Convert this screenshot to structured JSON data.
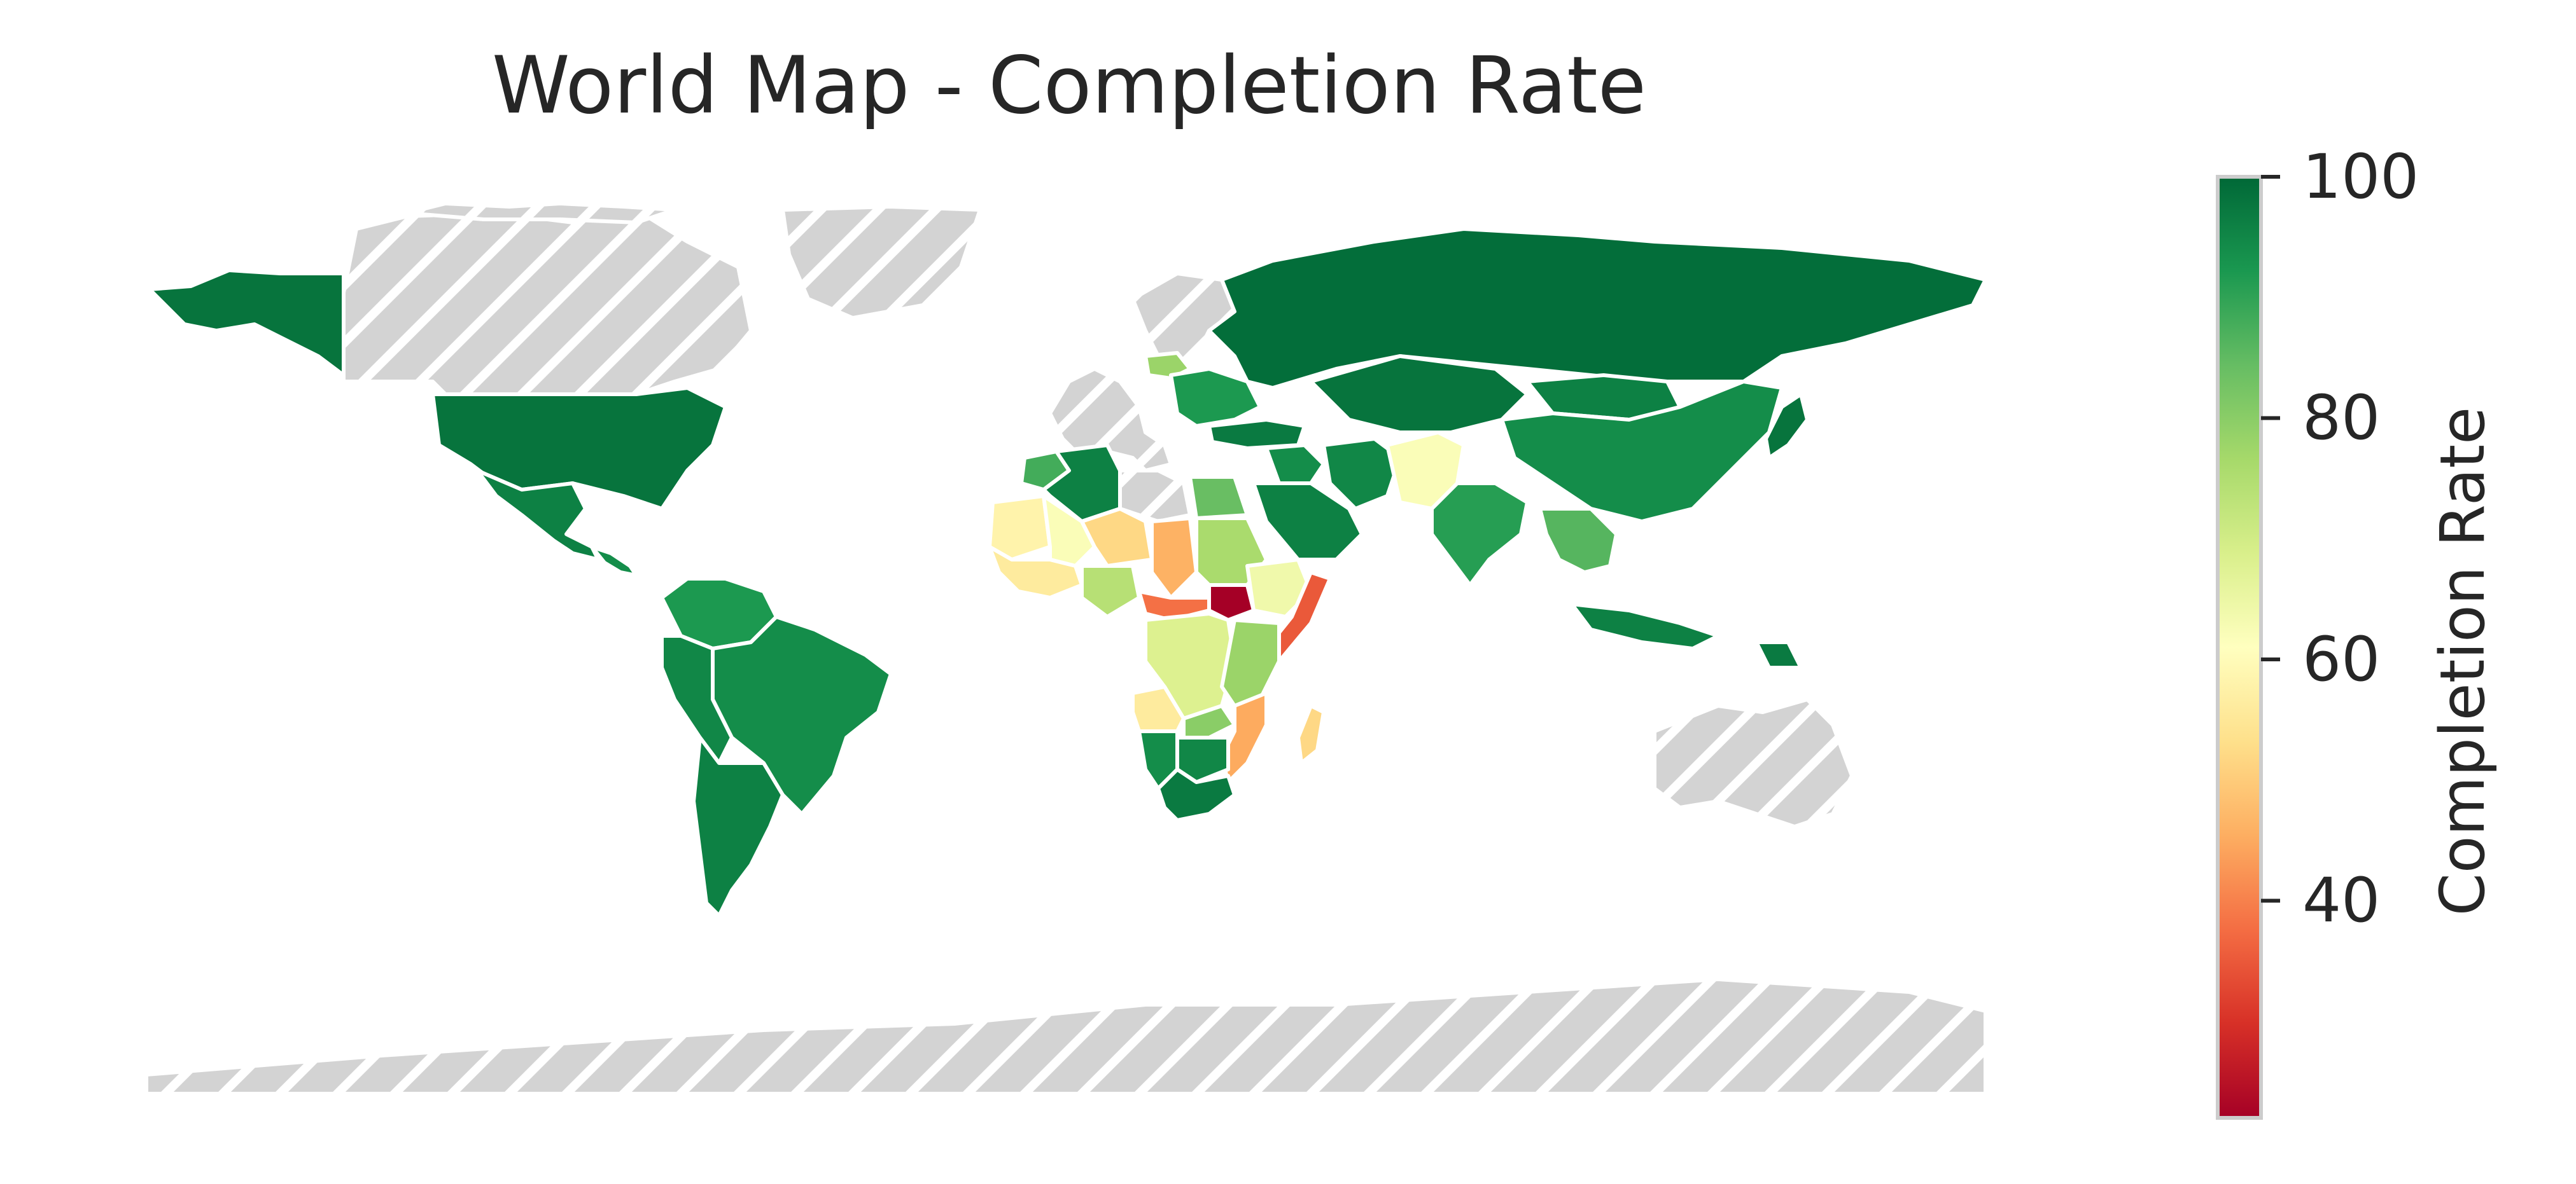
{
  "title": "World Map - Completion Rate",
  "colorbar": {
    "label": "Completion Rate",
    "min": 22,
    "max": 100,
    "ticks": [
      "40",
      "60",
      "80",
      "100"
    ],
    "colormap": "RdYlGn",
    "stops": [
      "#a50026",
      "#d73027",
      "#f46d43",
      "#fdae61",
      "#fee08b",
      "#ffffbf",
      "#d9ef8b",
      "#a6d96a",
      "#66bd63",
      "#1a9850",
      "#006837"
    ]
  },
  "colors": {
    "no_data": "#d3d3d3",
    "border": "#ffffff"
  },
  "chart_data": {
    "type": "choropleth",
    "value_range": [
      22,
      100
    ],
    "regions": [
      {
        "id": "canada",
        "value": null
      },
      {
        "id": "greenland",
        "value": null
      },
      {
        "id": "alaska",
        "value": 98
      },
      {
        "id": "usa",
        "value": 98
      },
      {
        "id": "mexico",
        "value": 96
      },
      {
        "id": "central-america",
        "value": 94
      },
      {
        "id": "colombia-venezuela",
        "value": 92
      },
      {
        "id": "brazil",
        "value": 94
      },
      {
        "id": "peru-bolivia",
        "value": 95
      },
      {
        "id": "argentina-chile",
        "value": 96
      },
      {
        "id": "europe-west",
        "value": null
      },
      {
        "id": "scandinavia",
        "value": null
      },
      {
        "id": "eastern-europe",
        "value": 92
      },
      {
        "id": "baltic",
        "value": 78
      },
      {
        "id": "russia",
        "value": 99
      },
      {
        "id": "turkey",
        "value": 97
      },
      {
        "id": "kazakhstan",
        "value": 98
      },
      {
        "id": "china",
        "value": 94
      },
      {
        "id": "mongolia",
        "value": 96
      },
      {
        "id": "middle-east",
        "value": 94
      },
      {
        "id": "saudi-arabia",
        "value": 96
      },
      {
        "id": "iran",
        "value": 95
      },
      {
        "id": "afghanistan-pakistan",
        "value": 62
      },
      {
        "id": "india",
        "value": 91
      },
      {
        "id": "southeast-asia",
        "value": 86
      },
      {
        "id": "indonesia",
        "value": 96
      },
      {
        "id": "japan",
        "value": 98
      },
      {
        "id": "png",
        "value": 97
      },
      {
        "id": "australia",
        "value": null
      },
      {
        "id": "antarctica",
        "value": null
      },
      {
        "id": "morocco",
        "value": 88
      },
      {
        "id": "algeria",
        "value": 96
      },
      {
        "id": "libya",
        "value": null
      },
      {
        "id": "egypt",
        "value": 84
      },
      {
        "id": "mauritania",
        "value": 58
      },
      {
        "id": "mali",
        "value": 62
      },
      {
        "id": "niger",
        "value": 52
      },
      {
        "id": "chad",
        "value": 46
      },
      {
        "id": "sudan",
        "value": 76
      },
      {
        "id": "south-sudan",
        "value": 22
      },
      {
        "id": "ethiopia",
        "value": 64
      },
      {
        "id": "somalia",
        "value": 35
      },
      {
        "id": "nigeria",
        "value": 74
      },
      {
        "id": "west-africa-coast",
        "value": 56
      },
      {
        "id": "car",
        "value": 38
      },
      {
        "id": "drc",
        "value": 68
      },
      {
        "id": "angola",
        "value": 56
      },
      {
        "id": "kenya-tanzania",
        "value": 78
      },
      {
        "id": "mozambique",
        "value": 45
      },
      {
        "id": "zambia",
        "value": 80
      },
      {
        "id": "namibia",
        "value": 94
      },
      {
        "id": "botswana-zimbabwe",
        "value": 95
      },
      {
        "id": "south-africa",
        "value": 97
      },
      {
        "id": "madagascar",
        "value": 52
      }
    ]
  }
}
